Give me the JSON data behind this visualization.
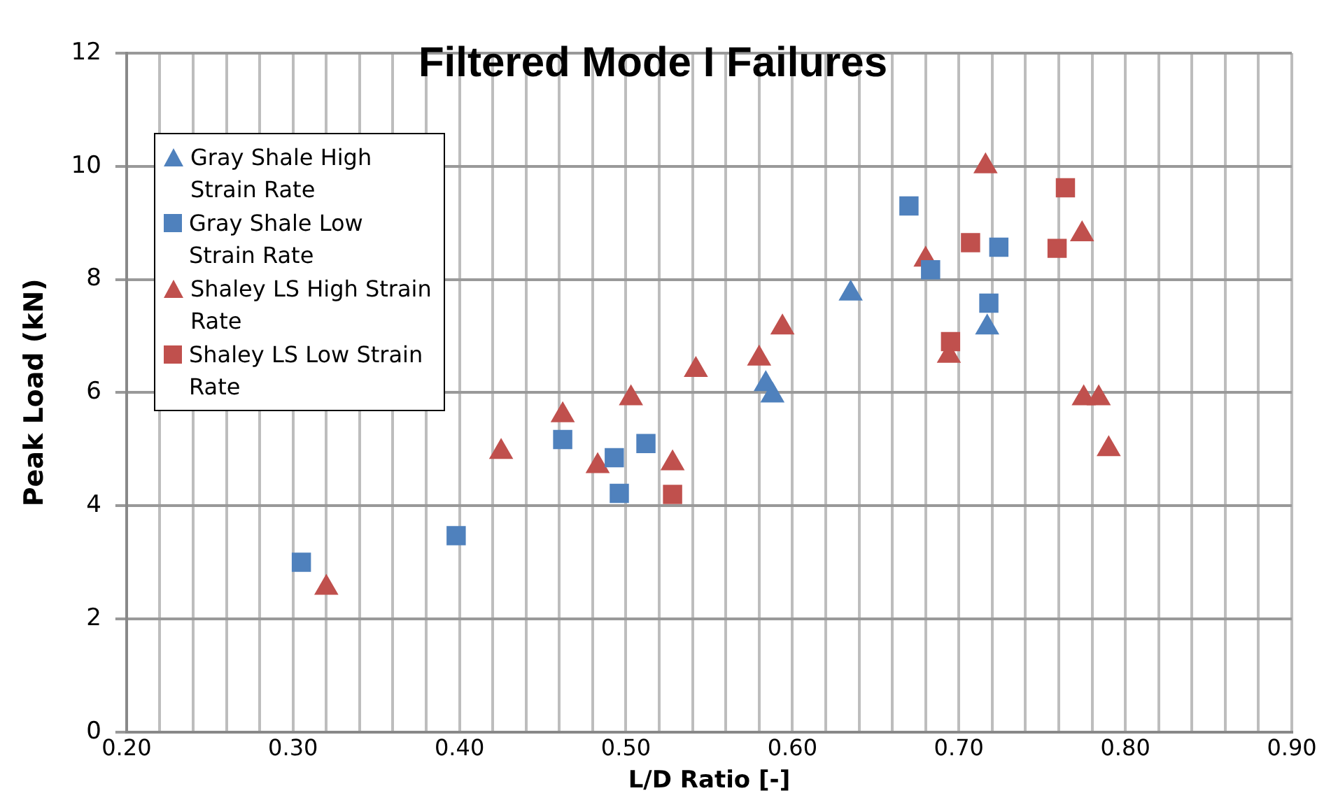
{
  "chart_data": {
    "type": "scatter",
    "title": "Filtered Mode I Failures",
    "xlabel": "L/D Ratio [-]",
    "ylabel": "Peak Load (kN)",
    "xlim": [
      0.2,
      0.9
    ],
    "xticks": [
      {
        "value": 0.2,
        "label": "0.20"
      },
      {
        "value": 0.22,
        "label": null
      },
      {
        "value": 0.24,
        "label": null
      },
      {
        "value": 0.26,
        "label": null
      },
      {
        "value": 0.28,
        "label": null
      },
      {
        "value": 0.3,
        "label": "0.30"
      },
      {
        "value": 0.32,
        "label": null
      },
      {
        "value": 0.34,
        "label": null
      },
      {
        "value": 0.36,
        "label": null
      },
      {
        "value": 0.38,
        "label": null
      },
      {
        "value": 0.4,
        "label": "0.40"
      },
      {
        "value": 0.42,
        "label": null
      },
      {
        "value": 0.44,
        "label": null
      },
      {
        "value": 0.46,
        "label": null
      },
      {
        "value": 0.48,
        "label": null
      },
      {
        "value": 0.5,
        "label": "0.50"
      },
      {
        "value": 0.52,
        "label": null
      },
      {
        "value": 0.54,
        "label": null
      },
      {
        "value": 0.56,
        "label": null
      },
      {
        "value": 0.58,
        "label": null
      },
      {
        "value": 0.6,
        "label": "0.60"
      },
      {
        "value": 0.62,
        "label": null
      },
      {
        "value": 0.64,
        "label": null
      },
      {
        "value": 0.66,
        "label": null
      },
      {
        "value": 0.68,
        "label": null
      },
      {
        "value": 0.7,
        "label": "0.70"
      },
      {
        "value": 0.72,
        "label": null
      },
      {
        "value": 0.74,
        "label": null
      },
      {
        "value": 0.76,
        "label": null
      },
      {
        "value": 0.78,
        "label": null
      },
      {
        "value": 0.8,
        "label": "0.80"
      },
      {
        "value": 0.82,
        "label": null
      },
      {
        "value": 0.84,
        "label": null
      },
      {
        "value": 0.86,
        "label": null
      },
      {
        "value": 0.88,
        "label": null
      },
      {
        "value": 0.9,
        "label": "0.90"
      }
    ],
    "ylim": [
      0,
      12
    ],
    "yticks": [
      0,
      2,
      4,
      6,
      8,
      10,
      12
    ],
    "grid": true,
    "legend": "top left",
    "series": [
      {
        "name": "Gray Shale High Strain Rate",
        "color": "#4f81bd",
        "marker": "triangle",
        "x": [
          0.584,
          0.588,
          0.635,
          0.717
        ],
        "values": [
          6.15,
          5.95,
          7.75,
          7.15
        ]
      },
      {
        "name": "Gray Shale Low Strain Rate",
        "color": "#4f81bd",
        "marker": "square",
        "x": [
          0.305,
          0.398,
          0.462,
          0.493,
          0.496,
          0.512,
          0.67,
          0.683,
          0.724,
          0.718
        ],
        "values": [
          3.0,
          3.47,
          5.17,
          4.85,
          4.22,
          5.1,
          9.3,
          8.17,
          8.57,
          7.58
        ]
      },
      {
        "name": "Shaley LS High Strain Rate",
        "color": "#c0504d",
        "marker": "triangle",
        "x": [
          0.32,
          0.425,
          0.462,
          0.483,
          0.503,
          0.528,
          0.542,
          0.58,
          0.594,
          0.68,
          0.694,
          0.716,
          0.774,
          0.775,
          0.784,
          0.79
        ],
        "values": [
          2.55,
          4.95,
          5.6,
          4.7,
          5.9,
          4.75,
          6.4,
          6.6,
          7.15,
          8.35,
          6.65,
          10.0,
          8.8,
          5.9,
          5.9,
          5.0
        ]
      },
      {
        "name": "Shaley LS Low Strain Rate",
        "color": "#c0504d",
        "marker": "square",
        "x": [
          0.528,
          0.695,
          0.707,
          0.759,
          0.764
        ],
        "values": [
          4.2,
          6.9,
          8.65,
          8.55,
          9.62
        ]
      }
    ]
  }
}
